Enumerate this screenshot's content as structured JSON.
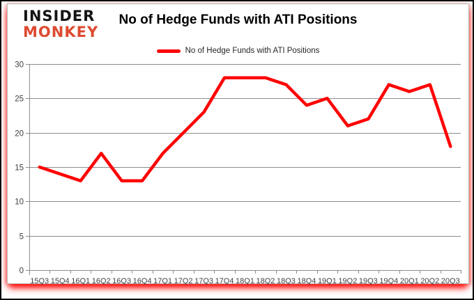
{
  "branding": {
    "logo_line1": "INSIDER",
    "logo_line2": "MONKEY",
    "logo_color": "#dd4a30"
  },
  "title": "No of Hedge Funds with ATI Positions",
  "legend": {
    "label": "No of Hedge Funds with ATI Positions",
    "line_color": "#ff0000"
  },
  "chart_data": {
    "type": "line",
    "title": "No of Hedge Funds with ATI Positions",
    "categories": [
      "15Q3",
      "15Q4",
      "16Q1",
      "16Q2",
      "16Q3",
      "16Q4",
      "17Q1",
      "17Q2",
      "17Q3",
      "17Q4",
      "18Q1",
      "18Q2",
      "18Q3",
      "18Q4",
      "19Q1",
      "19Q2",
      "19Q3",
      "19Q4",
      "20Q1",
      "20Q2",
      "20Q3"
    ],
    "series": [
      {
        "name": "No of Hedge Funds with ATI Positions",
        "color": "#ff0000",
        "values": [
          15,
          14,
          13,
          17,
          13,
          13,
          17,
          20,
          23,
          28,
          28,
          28,
          27,
          24,
          25,
          21,
          22,
          27,
          26,
          27,
          18
        ]
      }
    ],
    "xlabel": "",
    "ylabel": "",
    "ylim": [
      0,
      30
    ],
    "yticks": [
      0,
      5,
      10,
      15,
      20,
      25,
      30
    ],
    "grid": "horizontal",
    "legend_position": "top",
    "line_width": 4.5,
    "gridline_color": "#8c8c8c",
    "tick_label_color": "#3f3f3f"
  }
}
